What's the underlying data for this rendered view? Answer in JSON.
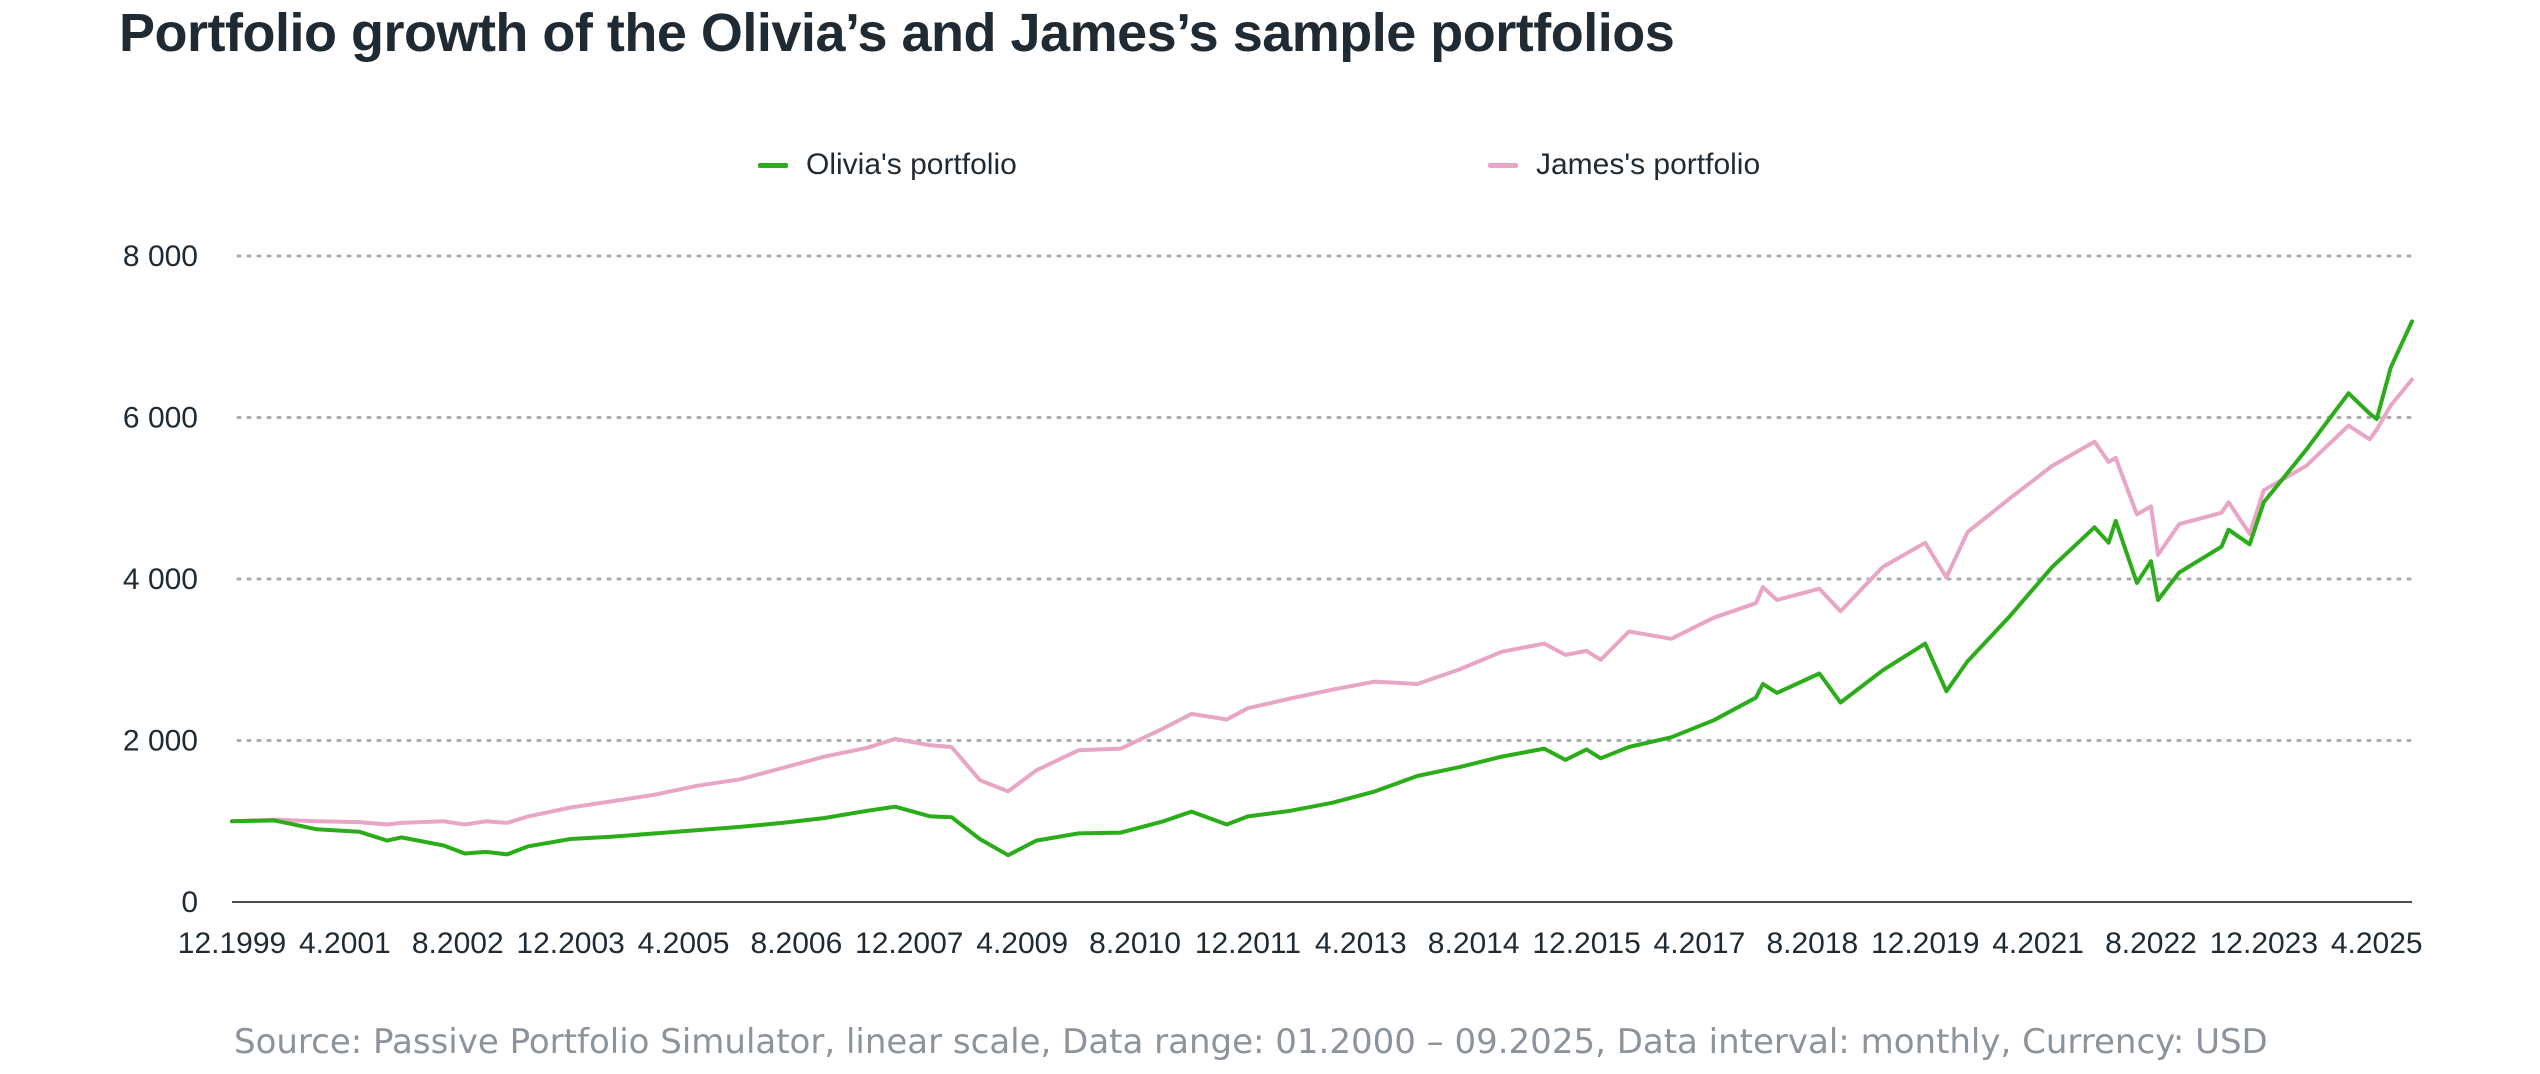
{
  "title": "Portfolio growth of the Olivia’s and James’s sample portfolios",
  "source": "Source: Passive Portfolio Simulator, linear scale, Data range: 01.2000 – 09.2025, Data interval: monthly, Currency: USD",
  "chart_data": {
    "type": "line",
    "title": "Portfolio growth of the Olivia’s and James’s sample portfolios",
    "xlabel": "",
    "ylabel": "",
    "x_range": [
      "12.1999",
      "09.2025"
    ],
    "ylim": [
      0,
      8000
    ],
    "y_ticks": [
      0,
      2000,
      4000,
      6000,
      8000
    ],
    "y_tick_labels": [
      "0",
      "2 000",
      "4 000",
      "6 000",
      "8 000"
    ],
    "x_tick_labels": [
      "12.1999",
      "4.2001",
      "8.2002",
      "12.2003",
      "4.2005",
      "8.2006",
      "12.2007",
      "4.2009",
      "8.2010",
      "12.2011",
      "4.2013",
      "8.2014",
      "12.2015",
      "4.2017",
      "8.2018",
      "12.2019",
      "4.2021",
      "8.2022",
      "12.2023",
      "4.2025"
    ],
    "grid": "horizontal dotted",
    "legend_position": "top",
    "series": [
      {
        "name": "Olivia's portfolio",
        "color": "#2aad18",
        "points": [
          [
            "12.1999",
            1000
          ],
          [
            "06.2000",
            1010
          ],
          [
            "12.2000",
            900
          ],
          [
            "06.2001",
            870
          ],
          [
            "10.2001",
            760
          ],
          [
            "12.2001",
            800
          ],
          [
            "06.2002",
            700
          ],
          [
            "09.2002",
            600
          ],
          [
            "12.2002",
            620
          ],
          [
            "03.2003",
            590
          ],
          [
            "06.2003",
            690
          ],
          [
            "12.2003",
            780
          ],
          [
            "06.2004",
            810
          ],
          [
            "12.2004",
            850
          ],
          [
            "06.2005",
            890
          ],
          [
            "12.2005",
            930
          ],
          [
            "06.2006",
            980
          ],
          [
            "12.2006",
            1040
          ],
          [
            "06.2007",
            1130
          ],
          [
            "10.2007",
            1180
          ],
          [
            "03.2008",
            1060
          ],
          [
            "06.2008",
            1050
          ],
          [
            "10.2008",
            780
          ],
          [
            "02.2009",
            580
          ],
          [
            "06.2009",
            760
          ],
          [
            "12.2009",
            850
          ],
          [
            "06.2010",
            860
          ],
          [
            "12.2010",
            1000
          ],
          [
            "04.2011",
            1120
          ],
          [
            "09.2011",
            960
          ],
          [
            "12.2011",
            1060
          ],
          [
            "06.2012",
            1130
          ],
          [
            "12.2012",
            1230
          ],
          [
            "06.2013",
            1370
          ],
          [
            "12.2013",
            1560
          ],
          [
            "06.2014",
            1670
          ],
          [
            "12.2014",
            1800
          ],
          [
            "06.2015",
            1900
          ],
          [
            "09.2015",
            1760
          ],
          [
            "12.2015",
            1890
          ],
          [
            "02.2016",
            1780
          ],
          [
            "06.2016",
            1920
          ],
          [
            "12.2016",
            2040
          ],
          [
            "06.2017",
            2250
          ],
          [
            "12.2017",
            2530
          ],
          [
            "01.2018",
            2700
          ],
          [
            "03.2018",
            2590
          ],
          [
            "09.2018",
            2830
          ],
          [
            "12.2018",
            2470
          ],
          [
            "06.2019",
            2870
          ],
          [
            "12.2019",
            3200
          ],
          [
            "03.2020",
            2610
          ],
          [
            "06.2020",
            2980
          ],
          [
            "12.2020",
            3540
          ],
          [
            "06.2021",
            4150
          ],
          [
            "12.2021",
            4640
          ],
          [
            "02.2022",
            4450
          ],
          [
            "03.2022",
            4720
          ],
          [
            "06.2022",
            3950
          ],
          [
            "08.2022",
            4220
          ],
          [
            "09.2022",
            3740
          ],
          [
            "12.2022",
            4080
          ],
          [
            "06.2023",
            4400
          ],
          [
            "07.2023",
            4610
          ],
          [
            "10.2023",
            4430
          ],
          [
            "12.2023",
            4950
          ],
          [
            "06.2024",
            5600
          ],
          [
            "12.2024",
            6300
          ],
          [
            "03.2025",
            6050
          ],
          [
            "04.2025",
            5980
          ],
          [
            "06.2025",
            6620
          ],
          [
            "09.2025",
            7190
          ]
        ]
      },
      {
        "name": "James's portfolio",
        "color": "#e8a5c5",
        "points": [
          [
            "12.1999",
            1000
          ],
          [
            "06.2000",
            1020
          ],
          [
            "12.2000",
            1000
          ],
          [
            "06.2001",
            990
          ],
          [
            "10.2001",
            960
          ],
          [
            "12.2001",
            980
          ],
          [
            "06.2002",
            1000
          ],
          [
            "09.2002",
            960
          ],
          [
            "12.2002",
            1000
          ],
          [
            "03.2003",
            980
          ],
          [
            "06.2003",
            1060
          ],
          [
            "12.2003",
            1170
          ],
          [
            "06.2004",
            1250
          ],
          [
            "12.2004",
            1330
          ],
          [
            "06.2005",
            1440
          ],
          [
            "12.2005",
            1520
          ],
          [
            "06.2006",
            1660
          ],
          [
            "12.2006",
            1800
          ],
          [
            "06.2007",
            1910
          ],
          [
            "10.2007",
            2020
          ],
          [
            "03.2008",
            1940
          ],
          [
            "06.2008",
            1920
          ],
          [
            "10.2008",
            1510
          ],
          [
            "02.2009",
            1370
          ],
          [
            "06.2009",
            1630
          ],
          [
            "12.2009",
            1880
          ],
          [
            "06.2010",
            1900
          ],
          [
            "12.2010",
            2150
          ],
          [
            "04.2011",
            2330
          ],
          [
            "09.2011",
            2260
          ],
          [
            "12.2011",
            2400
          ],
          [
            "06.2012",
            2520
          ],
          [
            "12.2012",
            2630
          ],
          [
            "06.2013",
            2730
          ],
          [
            "12.2013",
            2700
          ],
          [
            "06.2014",
            2880
          ],
          [
            "12.2014",
            3100
          ],
          [
            "06.2015",
            3200
          ],
          [
            "09.2015",
            3060
          ],
          [
            "12.2015",
            3110
          ],
          [
            "02.2016",
            3000
          ],
          [
            "06.2016",
            3350
          ],
          [
            "12.2016",
            3260
          ],
          [
            "06.2017",
            3520
          ],
          [
            "12.2017",
            3700
          ],
          [
            "01.2018",
            3900
          ],
          [
            "03.2018",
            3740
          ],
          [
            "09.2018",
            3880
          ],
          [
            "12.2018",
            3600
          ],
          [
            "06.2019",
            4150
          ],
          [
            "12.2019",
            4450
          ],
          [
            "03.2020",
            4020
          ],
          [
            "06.2020",
            4580
          ],
          [
            "12.2020",
            5000
          ],
          [
            "06.2021",
            5400
          ],
          [
            "12.2021",
            5700
          ],
          [
            "02.2022",
            5450
          ],
          [
            "03.2022",
            5500
          ],
          [
            "06.2022",
            4800
          ],
          [
            "08.2022",
            4900
          ],
          [
            "09.2022",
            4300
          ],
          [
            "12.2022",
            4680
          ],
          [
            "06.2023",
            4820
          ],
          [
            "07.2023",
            4950
          ],
          [
            "10.2023",
            4560
          ],
          [
            "12.2023",
            5100
          ],
          [
            "06.2024",
            5400
          ],
          [
            "12.2024",
            5900
          ],
          [
            "03.2025",
            5730
          ],
          [
            "04.2025",
            5850
          ],
          [
            "06.2025",
            6150
          ],
          [
            "09.2025",
            6470
          ]
        ]
      }
    ]
  }
}
